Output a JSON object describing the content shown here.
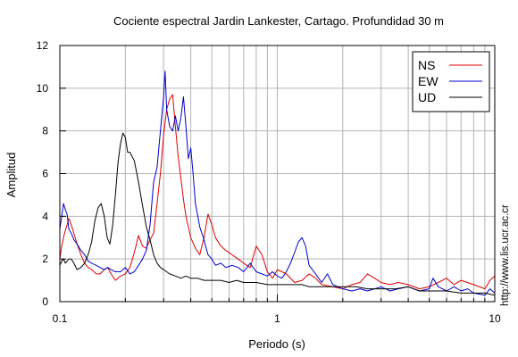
{
  "chart_data": {
    "type": "line",
    "title": "Cociente espectral Jardin Lankester, Cartago. Profundidad 30 m",
    "xlabel": "Periodo (s)",
    "ylabel": "Amplitud",
    "credit": "http://www.lis.ucr.ac.cr",
    "x_scale": "log",
    "xlim": [
      0.1,
      10
    ],
    "ylim": [
      0,
      12
    ],
    "x_ticks": [
      {
        "value": 0.1,
        "label": "0.1"
      },
      {
        "value": 1,
        "label": "1"
      },
      {
        "value": 10,
        "label": "10"
      }
    ],
    "y_ticks": [
      {
        "value": 0,
        "label": "0"
      },
      {
        "value": 2,
        "label": "2"
      },
      {
        "value": 4,
        "label": "4"
      },
      {
        "value": 6,
        "label": "6"
      },
      {
        "value": 8,
        "label": "8"
      },
      {
        "value": 10,
        "label": "10"
      },
      {
        "value": 12,
        "label": "12"
      }
    ],
    "grid": true,
    "legend_position": "top-right",
    "series": [
      {
        "name": "NS",
        "color": "#dd0000",
        "points": [
          [
            0.1,
            2.0
          ],
          [
            0.102,
            2.6
          ],
          [
            0.105,
            3.2
          ],
          [
            0.108,
            3.6
          ],
          [
            0.11,
            3.9
          ],
          [
            0.113,
            3.6
          ],
          [
            0.116,
            3.2
          ],
          [
            0.12,
            2.7
          ],
          [
            0.125,
            2.2
          ],
          [
            0.13,
            1.8
          ],
          [
            0.135,
            1.6
          ],
          [
            0.14,
            1.5
          ],
          [
            0.147,
            1.3
          ],
          [
            0.153,
            1.3
          ],
          [
            0.16,
            1.5
          ],
          [
            0.166,
            1.6
          ],
          [
            0.172,
            1.3
          ],
          [
            0.18,
            1.0
          ],
          [
            0.19,
            1.2
          ],
          [
            0.2,
            1.3
          ],
          [
            0.21,
            1.6
          ],
          [
            0.22,
            2.3
          ],
          [
            0.23,
            3.1
          ],
          [
            0.24,
            2.6
          ],
          [
            0.25,
            2.5
          ],
          [
            0.26,
            2.9
          ],
          [
            0.27,
            3.2
          ],
          [
            0.28,
            4.6
          ],
          [
            0.29,
            6.0
          ],
          [
            0.3,
            7.8
          ],
          [
            0.31,
            9.0
          ],
          [
            0.32,
            9.5
          ],
          [
            0.33,
            9.7
          ],
          [
            0.34,
            8.2
          ],
          [
            0.35,
            6.8
          ],
          [
            0.36,
            5.8
          ],
          [
            0.37,
            4.8
          ],
          [
            0.38,
            4.0
          ],
          [
            0.39,
            3.5
          ],
          [
            0.4,
            3.0
          ],
          [
            0.42,
            2.5
          ],
          [
            0.44,
            2.2
          ],
          [
            0.46,
            3.0
          ],
          [
            0.48,
            4.1
          ],
          [
            0.5,
            3.6
          ],
          [
            0.52,
            3.0
          ],
          [
            0.55,
            2.6
          ],
          [
            0.58,
            2.4
          ],
          [
            0.62,
            2.2
          ],
          [
            0.66,
            2.0
          ],
          [
            0.7,
            1.8
          ],
          [
            0.75,
            1.6
          ],
          [
            0.8,
            2.6
          ],
          [
            0.85,
            2.2
          ],
          [
            0.9,
            1.4
          ],
          [
            0.95,
            1.1
          ],
          [
            1.0,
            1.5
          ],
          [
            1.05,
            1.4
          ],
          [
            1.1,
            1.3
          ],
          [
            1.2,
            0.9
          ],
          [
            1.3,
            1.0
          ],
          [
            1.4,
            1.3
          ],
          [
            1.5,
            1.1
          ],
          [
            1.6,
            0.8
          ],
          [
            1.8,
            0.7
          ],
          [
            2.0,
            0.6
          ],
          [
            2.2,
            0.8
          ],
          [
            2.4,
            0.9
          ],
          [
            2.6,
            1.3
          ],
          [
            2.8,
            1.1
          ],
          [
            3.0,
            0.9
          ],
          [
            3.3,
            0.8
          ],
          [
            3.6,
            0.9
          ],
          [
            4.0,
            0.8
          ],
          [
            4.5,
            0.6
          ],
          [
            5.0,
            0.7
          ],
          [
            5.5,
            0.9
          ],
          [
            6.0,
            1.1
          ],
          [
            6.5,
            0.8
          ],
          [
            7.0,
            1.0
          ],
          [
            8.0,
            0.8
          ],
          [
            9.0,
            0.6
          ],
          [
            9.5,
            1.0
          ],
          [
            10.0,
            1.2
          ]
        ]
      },
      {
        "name": "EW",
        "color": "#0000cc",
        "points": [
          [
            0.1,
            3.4
          ],
          [
            0.102,
            4.0
          ],
          [
            0.104,
            4.6
          ],
          [
            0.106,
            4.3
          ],
          [
            0.108,
            4.1
          ],
          [
            0.11,
            3.4
          ],
          [
            0.113,
            3.2
          ],
          [
            0.116,
            2.9
          ],
          [
            0.12,
            2.7
          ],
          [
            0.125,
            2.4
          ],
          [
            0.13,
            2.2
          ],
          [
            0.135,
            1.9
          ],
          [
            0.14,
            1.8
          ],
          [
            0.147,
            1.7
          ],
          [
            0.153,
            1.6
          ],
          [
            0.16,
            1.5
          ],
          [
            0.166,
            1.6
          ],
          [
            0.172,
            1.5
          ],
          [
            0.18,
            1.4
          ],
          [
            0.19,
            1.4
          ],
          [
            0.2,
            1.6
          ],
          [
            0.21,
            1.3
          ],
          [
            0.22,
            1.4
          ],
          [
            0.23,
            1.7
          ],
          [
            0.24,
            2.0
          ],
          [
            0.25,
            2.4
          ],
          [
            0.26,
            3.6
          ],
          [
            0.27,
            5.6
          ],
          [
            0.28,
            6.3
          ],
          [
            0.29,
            8.0
          ],
          [
            0.3,
            9.6
          ],
          [
            0.305,
            10.8
          ],
          [
            0.31,
            9.0
          ],
          [
            0.32,
            8.2
          ],
          [
            0.33,
            8.0
          ],
          [
            0.34,
            8.7
          ],
          [
            0.35,
            8.0
          ],
          [
            0.36,
            8.6
          ],
          [
            0.37,
            9.6
          ],
          [
            0.38,
            8.2
          ],
          [
            0.39,
            6.7
          ],
          [
            0.4,
            7.2
          ],
          [
            0.41,
            6.0
          ],
          [
            0.42,
            4.6
          ],
          [
            0.44,
            3.5
          ],
          [
            0.46,
            2.9
          ],
          [
            0.48,
            2.2
          ],
          [
            0.5,
            2.0
          ],
          [
            0.52,
            1.7
          ],
          [
            0.55,
            1.8
          ],
          [
            0.58,
            1.6
          ],
          [
            0.62,
            1.7
          ],
          [
            0.66,
            1.6
          ],
          [
            0.7,
            1.4
          ],
          [
            0.75,
            1.8
          ],
          [
            0.8,
            1.4
          ],
          [
            0.85,
            1.3
          ],
          [
            0.9,
            1.2
          ],
          [
            0.95,
            1.4
          ],
          [
            1.0,
            1.2
          ],
          [
            1.05,
            1.1
          ],
          [
            1.1,
            1.4
          ],
          [
            1.15,
            1.8
          ],
          [
            1.2,
            2.3
          ],
          [
            1.25,
            2.8
          ],
          [
            1.3,
            3.0
          ],
          [
            1.35,
            2.6
          ],
          [
            1.4,
            1.7
          ],
          [
            1.5,
            1.3
          ],
          [
            1.6,
            0.9
          ],
          [
            1.7,
            1.3
          ],
          [
            1.8,
            0.8
          ],
          [
            2.0,
            0.6
          ],
          [
            2.2,
            0.5
          ],
          [
            2.4,
            0.6
          ],
          [
            2.6,
            0.5
          ],
          [
            2.8,
            0.6
          ],
          [
            3.0,
            0.7
          ],
          [
            3.3,
            0.5
          ],
          [
            3.6,
            0.6
          ],
          [
            4.0,
            0.7
          ],
          [
            4.5,
            0.5
          ],
          [
            5.0,
            0.6
          ],
          [
            5.2,
            1.1
          ],
          [
            5.5,
            0.7
          ],
          [
            6.0,
            0.5
          ],
          [
            6.5,
            0.7
          ],
          [
            7.0,
            0.5
          ],
          [
            7.5,
            0.6
          ],
          [
            8.0,
            0.4
          ],
          [
            9.0,
            0.3
          ],
          [
            9.5,
            0.6
          ],
          [
            10.0,
            0.4
          ]
        ]
      },
      {
        "name": "UD",
        "color": "#000000",
        "points": [
          [
            0.1,
            1.7
          ],
          [
            0.102,
            1.9
          ],
          [
            0.104,
            2.0
          ],
          [
            0.106,
            1.8
          ],
          [
            0.108,
            1.9
          ],
          [
            0.11,
            2.0
          ],
          [
            0.113,
            2.0
          ],
          [
            0.116,
            1.8
          ],
          [
            0.12,
            1.5
          ],
          [
            0.125,
            1.6
          ],
          [
            0.13,
            1.8
          ],
          [
            0.135,
            2.2
          ],
          [
            0.14,
            2.8
          ],
          [
            0.145,
            3.8
          ],
          [
            0.15,
            4.4
          ],
          [
            0.155,
            4.6
          ],
          [
            0.16,
            4.0
          ],
          [
            0.165,
            3.0
          ],
          [
            0.17,
            2.7
          ],
          [
            0.175,
            3.6
          ],
          [
            0.18,
            5.0
          ],
          [
            0.185,
            6.5
          ],
          [
            0.19,
            7.4
          ],
          [
            0.195,
            7.9
          ],
          [
            0.2,
            7.7
          ],
          [
            0.205,
            7.0
          ],
          [
            0.21,
            7.0
          ],
          [
            0.22,
            6.6
          ],
          [
            0.23,
            5.6
          ],
          [
            0.24,
            4.5
          ],
          [
            0.25,
            3.5
          ],
          [
            0.26,
            2.9
          ],
          [
            0.27,
            2.2
          ],
          [
            0.28,
            1.8
          ],
          [
            0.29,
            1.6
          ],
          [
            0.3,
            1.5
          ],
          [
            0.32,
            1.3
          ],
          [
            0.34,
            1.2
          ],
          [
            0.36,
            1.1
          ],
          [
            0.38,
            1.2
          ],
          [
            0.4,
            1.1
          ],
          [
            0.43,
            1.1
          ],
          [
            0.46,
            1.0
          ],
          [
            0.5,
            1.0
          ],
          [
            0.55,
            1.0
          ],
          [
            0.6,
            0.9
          ],
          [
            0.65,
            1.0
          ],
          [
            0.7,
            0.9
          ],
          [
            0.75,
            0.9
          ],
          [
            0.8,
            0.9
          ],
          [
            0.9,
            0.8
          ],
          [
            1.0,
            0.8
          ],
          [
            1.1,
            0.8
          ],
          [
            1.2,
            0.8
          ],
          [
            1.3,
            0.8
          ],
          [
            1.4,
            0.7
          ],
          [
            1.6,
            0.7
          ],
          [
            1.8,
            0.7
          ],
          [
            2.0,
            0.7
          ],
          [
            2.3,
            0.7
          ],
          [
            2.6,
            0.6
          ],
          [
            3.0,
            0.6
          ],
          [
            3.5,
            0.6
          ],
          [
            4.0,
            0.7
          ],
          [
            4.5,
            0.5
          ],
          [
            5.0,
            0.5
          ],
          [
            6.0,
            0.5
          ],
          [
            7.0,
            0.4
          ],
          [
            8.0,
            0.4
          ],
          [
            9.0,
            0.4
          ],
          [
            10.0,
            0.3
          ]
        ]
      }
    ]
  }
}
